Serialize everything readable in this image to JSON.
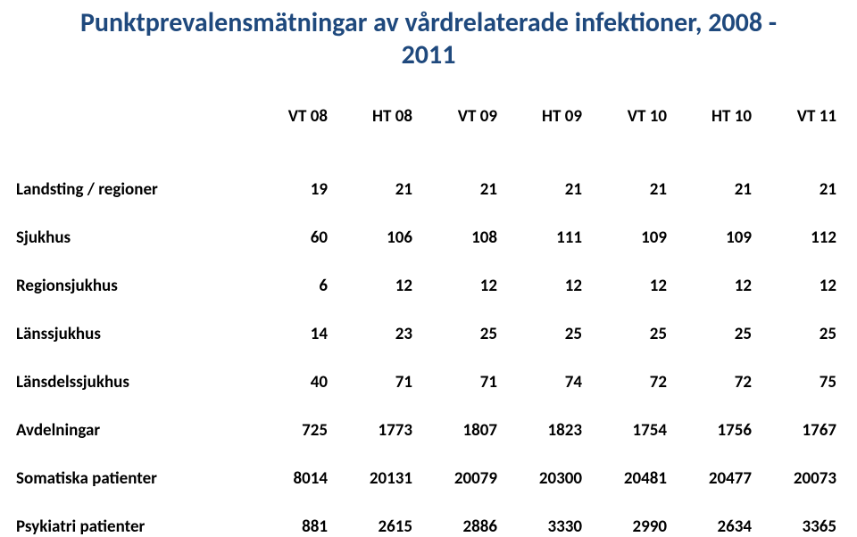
{
  "title_line1": "Punktprevalensmätningar av vårdrelaterade infektioner, 2008 -",
  "title_line2": "2011",
  "table": {
    "columns": [
      "VT 08",
      "HT 08",
      "VT 09",
      "HT 09",
      "VT 10",
      "HT 10",
      "VT 11"
    ],
    "rows": [
      {
        "label": "Landsting / regioner",
        "values": [
          "19",
          "21",
          "21",
          "21",
          "21",
          "21",
          "21"
        ]
      },
      {
        "label": "Sjukhus",
        "values": [
          "60",
          "106",
          "108",
          "111",
          "109",
          "109",
          "112"
        ]
      },
      {
        "label": "Regionsjukhus",
        "values": [
          "6",
          "12",
          "12",
          "12",
          "12",
          "12",
          "12"
        ]
      },
      {
        "label": "Länssjukhus",
        "values": [
          "14",
          "23",
          "25",
          "25",
          "25",
          "25",
          "25"
        ]
      },
      {
        "label": "Länsdelssjukhus",
        "values": [
          "40",
          "71",
          "71",
          "74",
          "72",
          "72",
          "75"
        ]
      },
      {
        "label": "Avdelningar",
        "values": [
          "725",
          "1773",
          "1807",
          "1823",
          "1754",
          "1756",
          "1767"
        ]
      },
      {
        "label": "Somatiska patienter",
        "values": [
          "8014",
          "20131",
          "20079",
          "20300",
          "20481",
          "20477",
          "20073"
        ]
      },
      {
        "label": "Psykiatri patienter",
        "values": [
          "881",
          "2615",
          "2886",
          "3330",
          "2990",
          "2634",
          "3365"
        ]
      }
    ],
    "title_color": "#1f497d",
    "text_color": "#000000",
    "background_color": "#ffffff",
    "title_fontsize": 30,
    "cell_fontsize": 19,
    "font_weight": 700
  }
}
